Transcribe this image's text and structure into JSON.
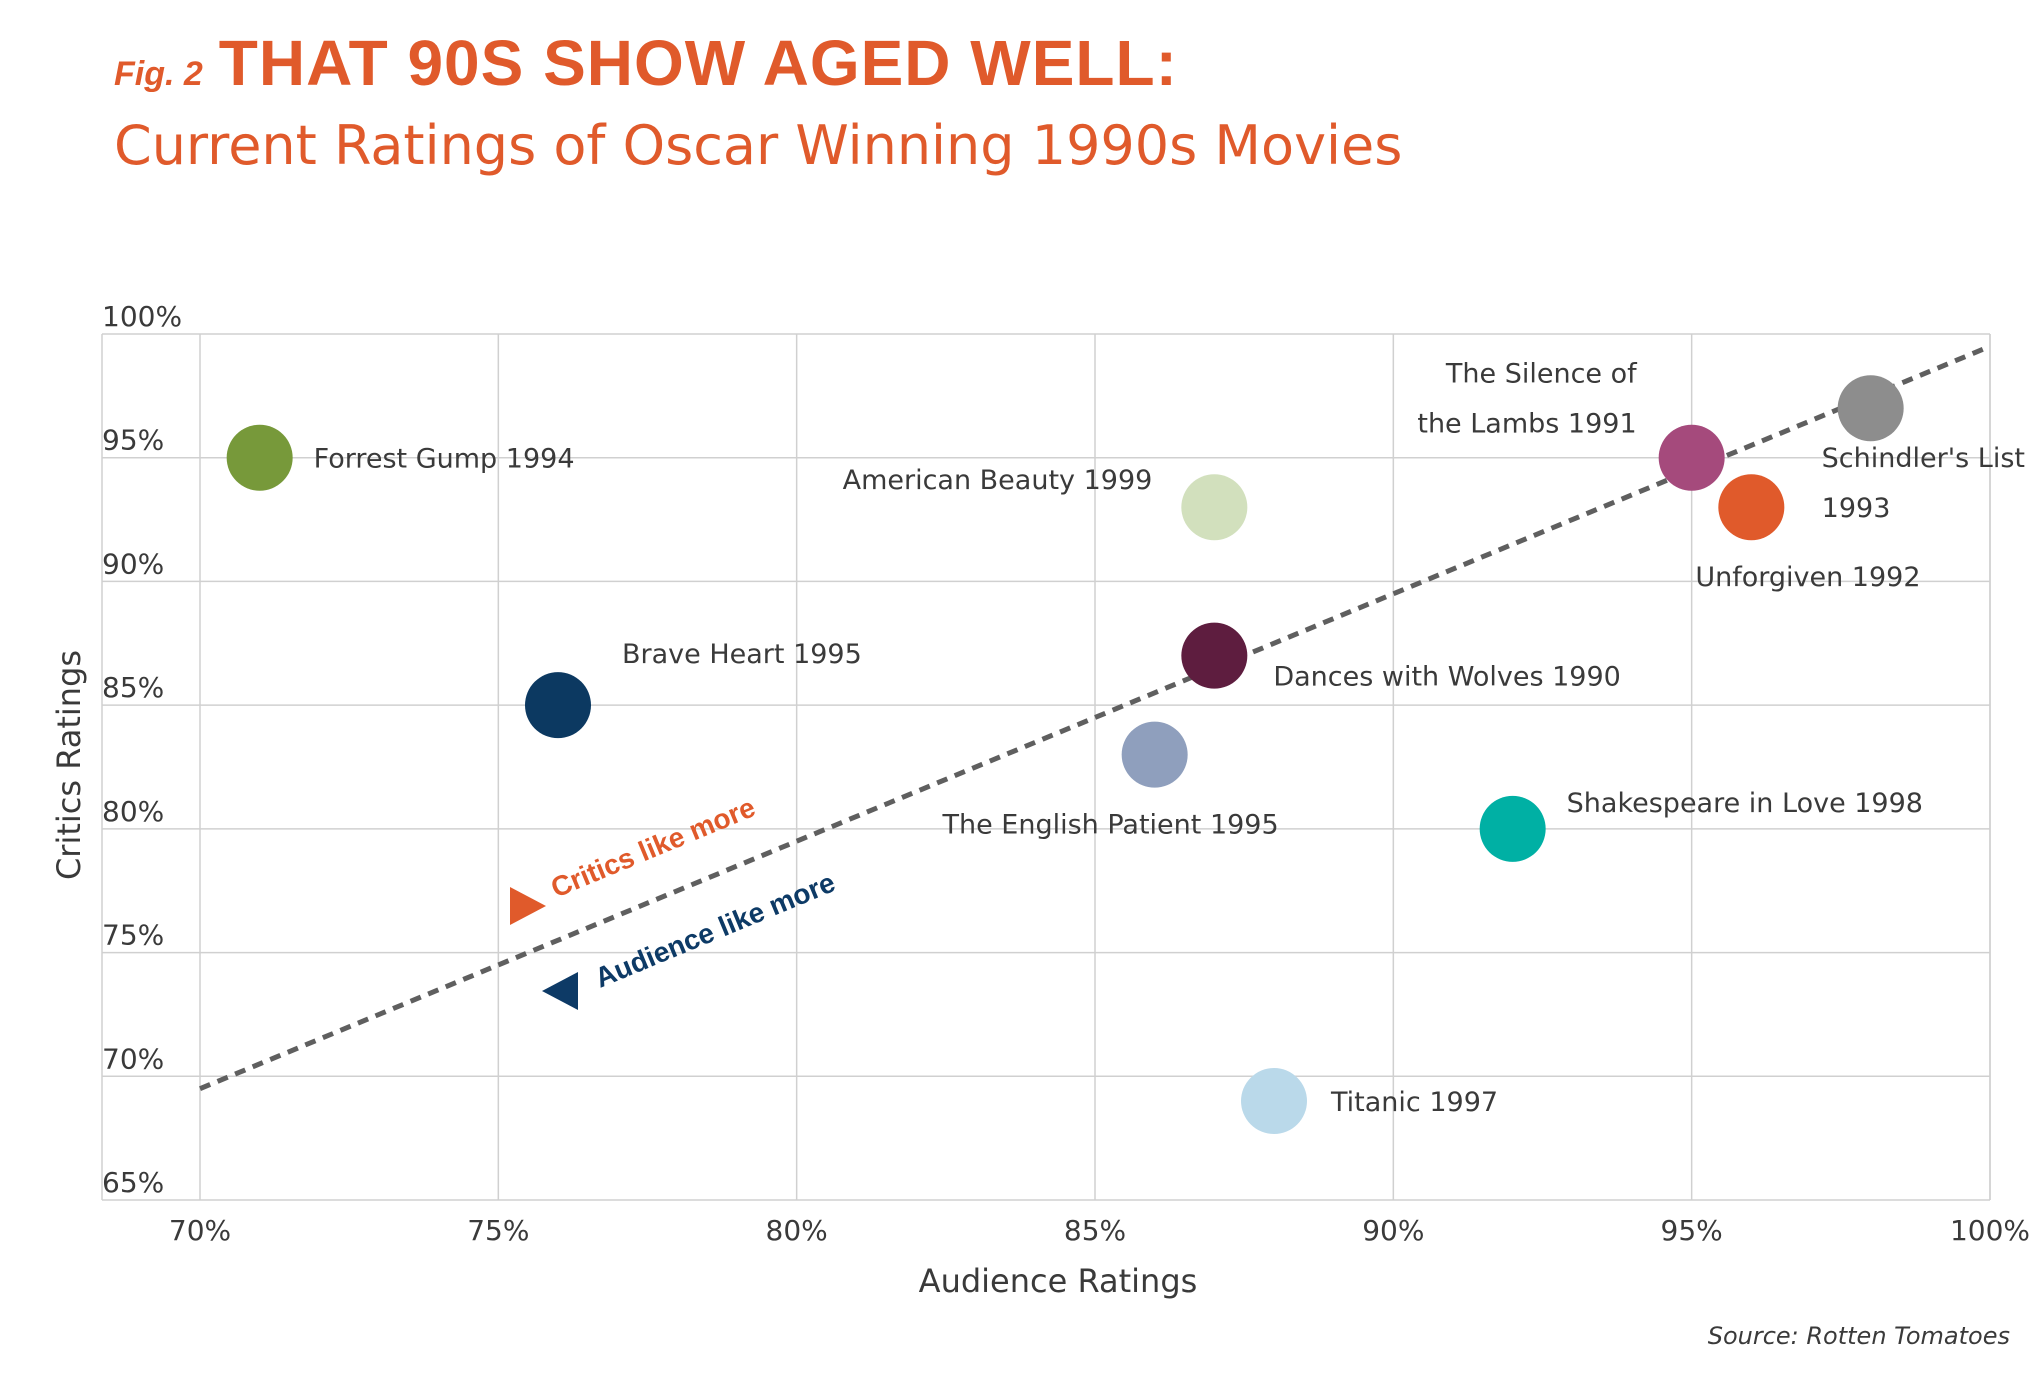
{
  "header": {
    "fig_label": "Fig. 2",
    "title": "THAT 90S SHOW AGED WELL:",
    "subtitle": "Current Ratings of Oscar Winning 1990s Movies"
  },
  "source": "Source: Rotten Tomatoes",
  "colors": {
    "accent": "#e05a2b",
    "navy": "#0d3a66",
    "grid": "#d0d0d0",
    "trend": "#5f5f5f"
  },
  "chart_data": {
    "type": "scatter",
    "xlabel": "Audience Ratings",
    "ylabel": "Critics Ratings",
    "xlim": [
      70,
      100
    ],
    "ylim": [
      65,
      100
    ],
    "x_ticks": [
      70,
      75,
      80,
      85,
      90,
      95,
      100
    ],
    "y_ticks": [
      65,
      70,
      75,
      80,
      85,
      90,
      95,
      100
    ],
    "x_tick_labels": [
      "70%",
      "75%",
      "80%",
      "85%",
      "90%",
      "95%",
      "100%"
    ],
    "y_tick_labels": [
      "65%",
      "70%",
      "75%",
      "80%",
      "85%",
      "90%",
      "95%",
      "100%"
    ],
    "grid": true,
    "points": [
      {
        "label": "Forrest Gump 1994",
        "x": 71,
        "y": 95,
        "color": "#77993a"
      },
      {
        "label": "American Beauty 1999",
        "x": 87,
        "y": 93,
        "color": "#d2e0bd"
      },
      {
        "label": "The Silence of the Lambs 1991",
        "label_lines": [
          "The Silence of",
          "the Lambs 1991"
        ],
        "x": 95,
        "y": 95,
        "color": "#a54a7c"
      },
      {
        "label": "Schindler's List 1993",
        "label_lines": [
          "Schindler's List",
          "1993"
        ],
        "x": 98,
        "y": 97,
        "color": "#8d8d8d"
      },
      {
        "label": "Unforgiven 1992",
        "x": 96,
        "y": 93,
        "color": "#e05a2b"
      },
      {
        "label": "Brave Heart 1995",
        "x": 76,
        "y": 85,
        "color": "#0c3961"
      },
      {
        "label": "Dances with Wolves 1990",
        "x": 87,
        "y": 87,
        "color": "#5e1d3f"
      },
      {
        "label": "The English Patient 1995",
        "x": 86,
        "y": 83,
        "color": "#8f9fbd"
      },
      {
        "label": "Shakespeare in Love 1998",
        "x": 92,
        "y": 80,
        "color": "#00b0a4"
      },
      {
        "label": "Titanic 1997",
        "x": 88,
        "y": 69,
        "color": "#bad9ea"
      }
    ],
    "trend_line": {
      "style": "dashed",
      "start": {
        "x": 70,
        "y": 69.5
      },
      "end": {
        "x": 100,
        "y": 99.5
      }
    },
    "annotations": [
      {
        "text": "Critics like more",
        "color": "#e05a2b",
        "marker": "triangle-right"
      },
      {
        "text": "Audience like more",
        "color": "#0d3a66",
        "marker": "triangle-left"
      }
    ]
  }
}
